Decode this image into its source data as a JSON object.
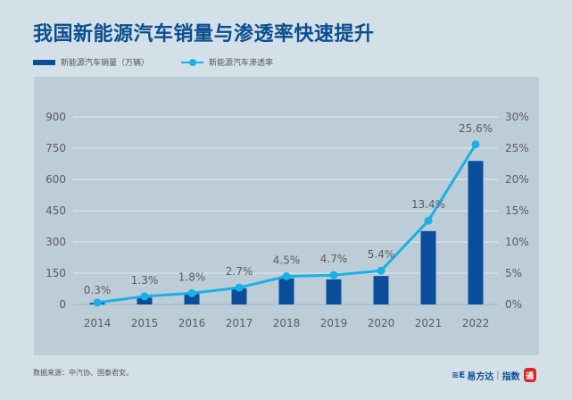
{
  "title": "我国新能源汽车销量与渗透率快速提升",
  "legend": {
    "bar_label": "新能源汽车销量（万辆）",
    "line_label": "新能源汽车渗透率"
  },
  "source": "数据来源：中汽协、国泰君安。",
  "brand": {
    "mark": "≋E",
    "name": "易方达",
    "index": "指数",
    "seal": "通"
  },
  "colors": {
    "bar": "#0a4e9b",
    "line": "#1ab0e8",
    "title": "#0a4e8f",
    "panel": "#bccdd7",
    "background": "#d3e0e8"
  },
  "chart_data": {
    "type": "bar+line",
    "title": "我国新能源汽车销量与渗透率快速提升",
    "categories": [
      "2014",
      "2015",
      "2016",
      "2017",
      "2018",
      "2019",
      "2020",
      "2021",
      "2022"
    ],
    "series": [
      {
        "name": "新能源汽车销量（万辆）",
        "type": "bar",
        "axis": "left",
        "values": [
          7.5,
          33.1,
          50.7,
          77.7,
          125.6,
          120.6,
          136.7,
          352.1,
          688.7
        ]
      },
      {
        "name": "新能源汽车渗透率",
        "type": "line",
        "axis": "right",
        "values": [
          0.3,
          1.3,
          1.8,
          2.7,
          4.5,
          4.7,
          5.4,
          13.4,
          25.6
        ],
        "data_labels": [
          "0.3%",
          "1.3%",
          "1.8%",
          "2.7%",
          "4.5%",
          "4.7%",
          "5.4%",
          "13.4%",
          "25.6%"
        ]
      }
    ],
    "left_axis": {
      "ylim": [
        0,
        900
      ],
      "ticks": [
        "0",
        "150",
        "300",
        "450",
        "600",
        "750",
        "900"
      ]
    },
    "right_axis": {
      "ylim": [
        0,
        30
      ],
      "ticks": [
        "0%",
        "5%",
        "10%",
        "15%",
        "20%",
        "25%",
        "30%"
      ]
    },
    "grid": true,
    "legend_position": "top-left"
  }
}
